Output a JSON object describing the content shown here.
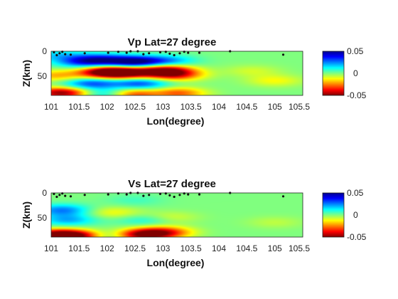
{
  "chart_data": [
    {
      "type": "heatmap",
      "title": "Vp Lat=27 degree",
      "xlabel": "Lon(degree)",
      "ylabel": "Z(km)",
      "xlim": [
        101,
        105.5
      ],
      "ylim": [
        0,
        90
      ],
      "y_reversed": true,
      "xticks": [
        "101",
        "101.5",
        "102",
        "102.5",
        "103",
        "103.5",
        "104",
        "104.5",
        "105",
        "105.5"
      ],
      "yticks": [
        "0",
        "50"
      ],
      "colorbar": {
        "ticks": [
          "0.05",
          "0",
          "-0.05"
        ],
        "range": [
          -0.05,
          0.05
        ],
        "colormap": "jet"
      },
      "field_blobs": [
        {
          "x": 102.0,
          "z": 42,
          "value": -0.05
        },
        {
          "x": 102.3,
          "z": 44,
          "value": -0.04
        },
        {
          "x": 102.5,
          "z": 22,
          "value": 0.05
        },
        {
          "x": 101.6,
          "z": 22,
          "value": 0.03
        },
        {
          "x": 101.9,
          "z": 16,
          "value": 0.025
        },
        {
          "x": 103.0,
          "z": 38,
          "value": -0.045
        },
        {
          "x": 103.2,
          "z": 48,
          "value": -0.035
        },
        {
          "x": 103.1,
          "z": 20,
          "value": 0.02
        },
        {
          "x": 101.1,
          "z": 50,
          "value": -0.02
        },
        {
          "x": 101.2,
          "z": 85,
          "value": -0.05
        },
        {
          "x": 102.5,
          "z": 88,
          "value": -0.045
        },
        {
          "x": 103.2,
          "z": 86,
          "value": -0.04
        },
        {
          "x": 101.7,
          "z": 66,
          "value": 0.03
        },
        {
          "x": 102.6,
          "z": 66,
          "value": 0.03
        },
        {
          "x": 102.0,
          "z": 88,
          "value": 0.025
        },
        {
          "x": 102.9,
          "z": 88,
          "value": 0.025
        },
        {
          "x": 105.0,
          "z": 60,
          "value": -0.012
        },
        {
          "x": 104.6,
          "z": 40,
          "value": -0.008
        },
        {
          "x": 101.1,
          "z": 8,
          "value": 0.015
        }
      ],
      "events": [
        {
          "lon": 101.05,
          "z": 2
        },
        {
          "lon": 101.1,
          "z": 8
        },
        {
          "lon": 101.15,
          "z": 4
        },
        {
          "lon": 101.2,
          "z": 1
        },
        {
          "lon": 101.25,
          "z": 6
        },
        {
          "lon": 101.35,
          "z": 7
        },
        {
          "lon": 101.6,
          "z": 4
        },
        {
          "lon": 102.02,
          "z": 3
        },
        {
          "lon": 102.2,
          "z": 1
        },
        {
          "lon": 102.35,
          "z": 3
        },
        {
          "lon": 102.42,
          "z": 0
        },
        {
          "lon": 102.55,
          "z": 0
        },
        {
          "lon": 102.65,
          "z": 6
        },
        {
          "lon": 102.75,
          "z": 4
        },
        {
          "lon": 102.95,
          "z": 2
        },
        {
          "lon": 103.05,
          "z": 1
        },
        {
          "lon": 103.12,
          "z": 5
        },
        {
          "lon": 103.2,
          "z": 8
        },
        {
          "lon": 103.3,
          "z": 4
        },
        {
          "lon": 103.38,
          "z": 1
        },
        {
          "lon": 103.45,
          "z": 3
        },
        {
          "lon": 103.65,
          "z": 3
        },
        {
          "lon": 104.2,
          "z": 0
        },
        {
          "lon": 105.15,
          "z": 7
        }
      ]
    },
    {
      "type": "heatmap",
      "title": "Vs Lat=27 degree",
      "xlabel": "Lon(degree)",
      "ylabel": "Z(km)",
      "xlim": [
        101,
        105.5
      ],
      "ylim": [
        0,
        90
      ],
      "y_reversed": true,
      "xticks": [
        "101",
        "101.5",
        "102",
        "102.5",
        "103",
        "103.5",
        "104",
        "104.5",
        "105",
        "105.5"
      ],
      "yticks": [
        "0",
        "50"
      ],
      "colorbar": {
        "ticks": [
          "0.05",
          "0",
          "-0.05"
        ],
        "range": [
          -0.05,
          0.05
        ],
        "colormap": "jet"
      },
      "field_blobs": [
        {
          "x": 101.2,
          "z": 35,
          "value": 0.025
        },
        {
          "x": 101.3,
          "z": 55,
          "value": 0.02
        },
        {
          "x": 101.1,
          "z": 86,
          "value": -0.05
        },
        {
          "x": 101.5,
          "z": 88,
          "value": -0.04
        },
        {
          "x": 102.6,
          "z": 86,
          "value": -0.045
        },
        {
          "x": 103.0,
          "z": 80,
          "value": -0.035
        },
        {
          "x": 102.0,
          "z": 88,
          "value": 0.02
        },
        {
          "x": 102.1,
          "z": 40,
          "value": -0.012
        },
        {
          "x": 102.7,
          "z": 55,
          "value": 0.012
        },
        {
          "x": 103.1,
          "z": 50,
          "value": -0.01
        },
        {
          "x": 105.0,
          "z": 60,
          "value": -0.006
        },
        {
          "x": 102.5,
          "z": 15,
          "value": 0.006
        }
      ],
      "events": [
        {
          "lon": 101.05,
          "z": 2
        },
        {
          "lon": 101.1,
          "z": 8
        },
        {
          "lon": 101.15,
          "z": 4
        },
        {
          "lon": 101.2,
          "z": 1
        },
        {
          "lon": 101.25,
          "z": 6
        },
        {
          "lon": 101.35,
          "z": 7
        },
        {
          "lon": 101.6,
          "z": 4
        },
        {
          "lon": 102.02,
          "z": 3
        },
        {
          "lon": 102.2,
          "z": 1
        },
        {
          "lon": 102.35,
          "z": 3
        },
        {
          "lon": 102.42,
          "z": 0
        },
        {
          "lon": 102.55,
          "z": 0
        },
        {
          "lon": 102.65,
          "z": 6
        },
        {
          "lon": 102.75,
          "z": 4
        },
        {
          "lon": 102.95,
          "z": 2
        },
        {
          "lon": 103.05,
          "z": 1
        },
        {
          "lon": 103.12,
          "z": 5
        },
        {
          "lon": 103.2,
          "z": 8
        },
        {
          "lon": 103.3,
          "z": 4
        },
        {
          "lon": 103.38,
          "z": 1
        },
        {
          "lon": 103.45,
          "z": 3
        },
        {
          "lon": 103.65,
          "z": 3
        },
        {
          "lon": 104.2,
          "z": 0
        },
        {
          "lon": 105.15,
          "z": 7
        }
      ]
    }
  ]
}
